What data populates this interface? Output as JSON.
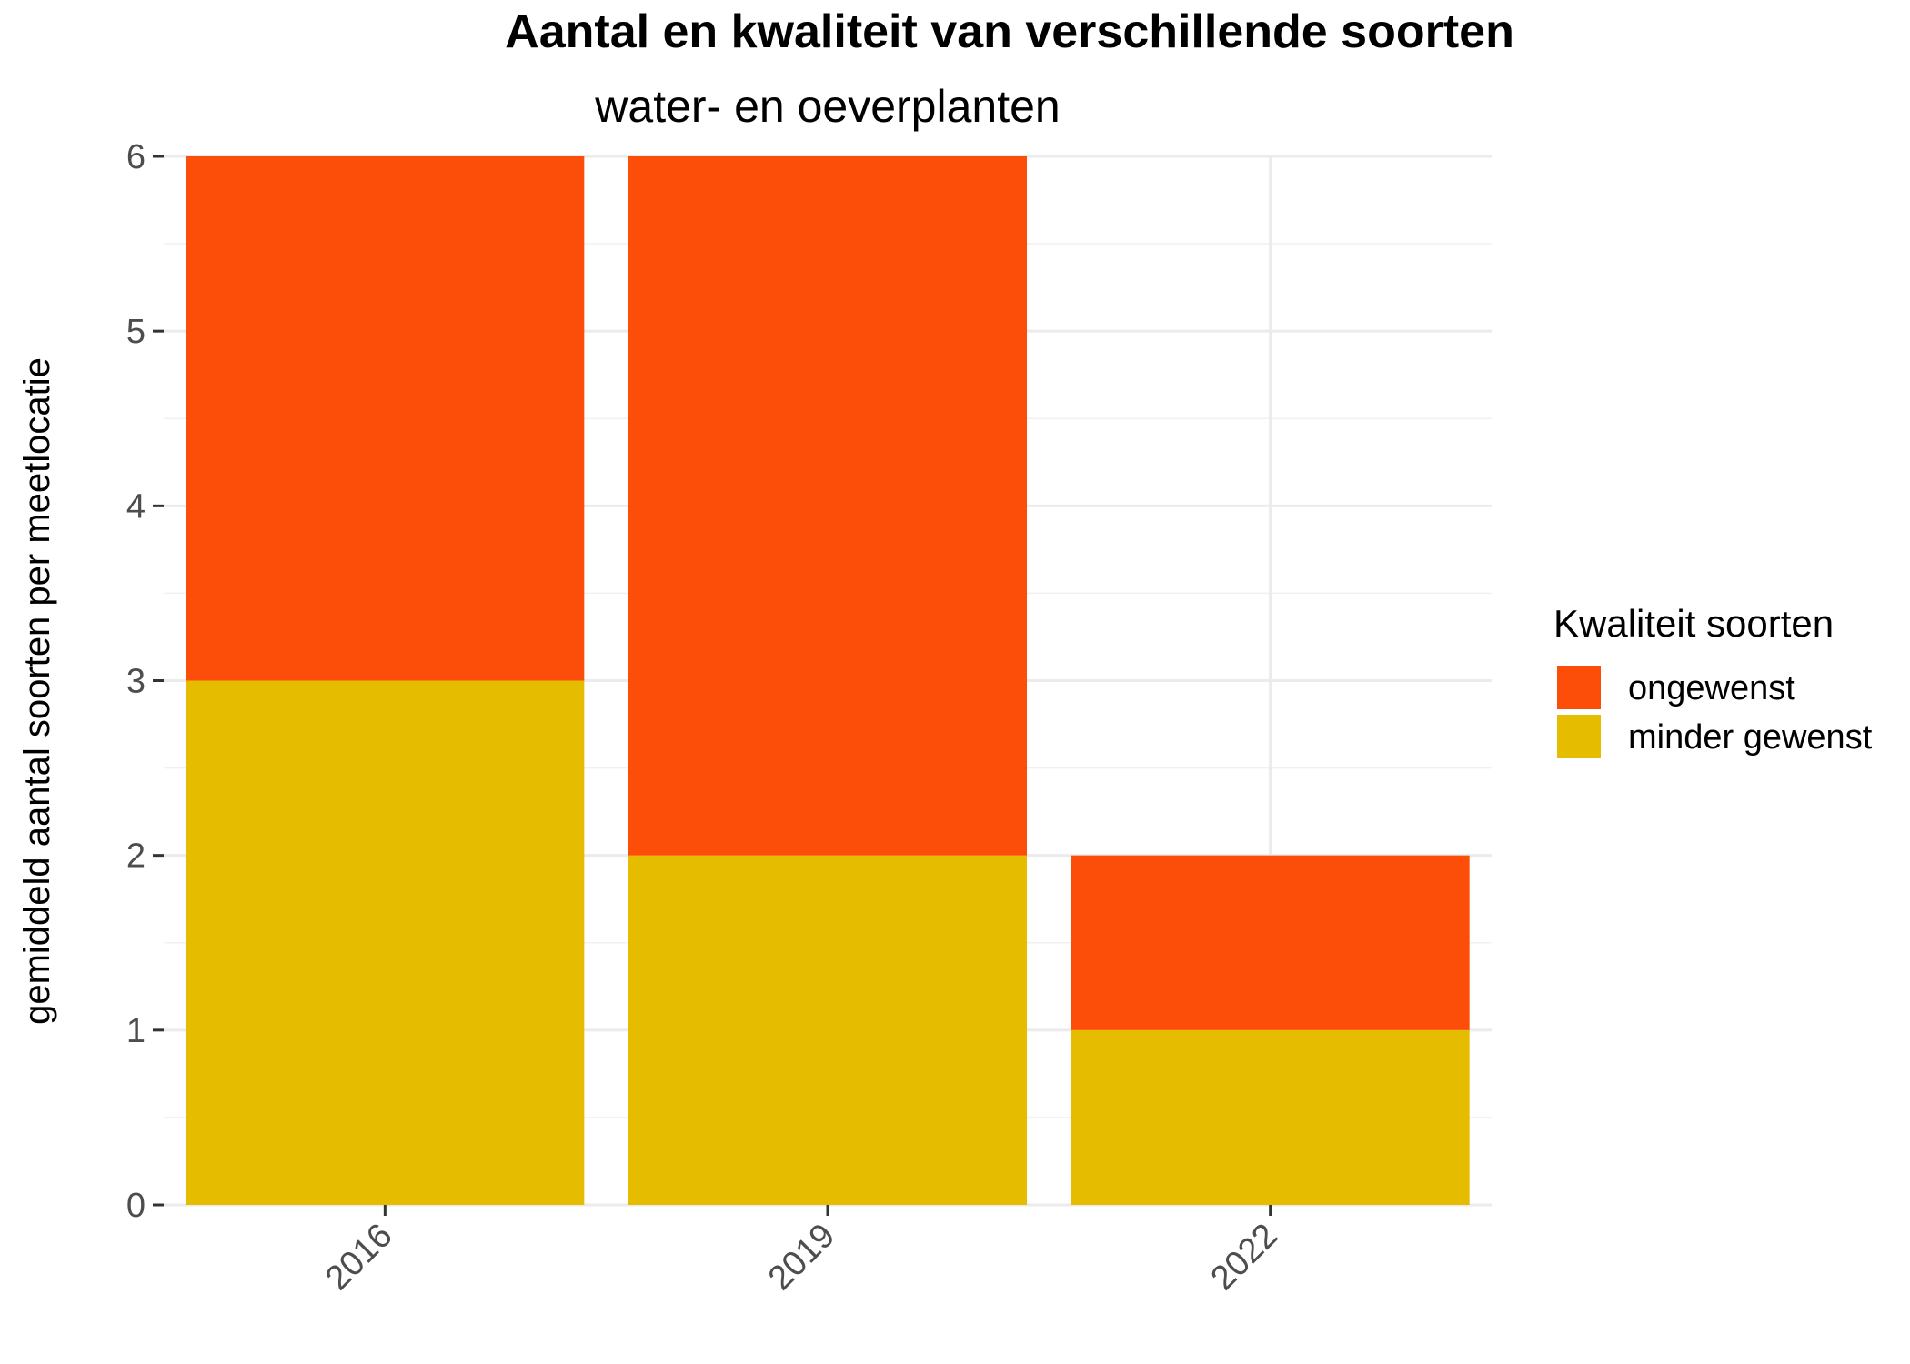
{
  "chart_data": {
    "type": "bar",
    "stacked": true,
    "title": "Aantal en kwaliteit van verschillende soorten",
    "subtitle": "water- en oeverplanten",
    "xlabel": "",
    "ylabel": "gemiddeld aantal soorten per meetlocatie",
    "categories": [
      "2016",
      "2019",
      "2022"
    ],
    "yticks": [
      "0",
      "1",
      "2",
      "3",
      "4",
      "5",
      "6"
    ],
    "ylim": [
      0,
      6
    ],
    "grid": true,
    "legend_position": "right",
    "legend_title": "Kwaliteit soorten",
    "series": [
      {
        "name": "ongewenst",
        "values": [
          3,
          4,
          1
        ],
        "color": "#FC4E08"
      },
      {
        "name": "minder gewenst",
        "values": [
          3,
          2,
          1
        ],
        "color": "#E5BC00"
      }
    ]
  }
}
